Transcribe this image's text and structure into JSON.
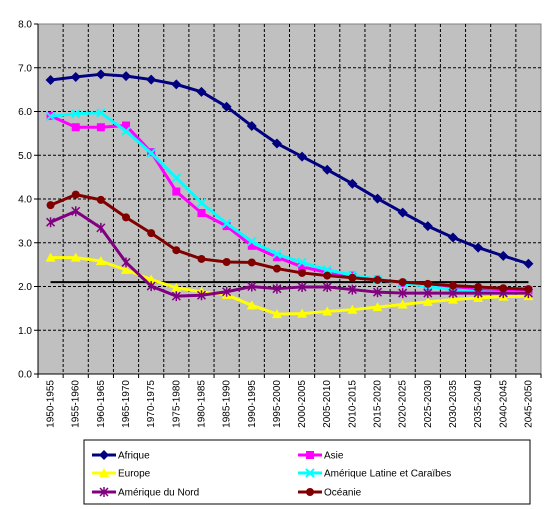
{
  "chart_data": {
    "type": "line",
    "title": "",
    "xlabel": "",
    "ylabel": "",
    "ylim": [
      0,
      8
    ],
    "y_ticks": [
      "0.0",
      "1.0",
      "2.0",
      "3.0",
      "4.0",
      "5.0",
      "6.0",
      "7.0",
      "8.0"
    ],
    "categories": [
      "1950-1955",
      "1955-1960",
      "1960-1965",
      "1965-1970",
      "1970-1975",
      "1975-1980",
      "1980-1985",
      "1985-1990",
      "1990-1995",
      "1995-2000",
      "2000-2005",
      "2005-2010",
      "2010-2015",
      "2015-2020",
      "2020-2025",
      "2025-2030",
      "2030-2035",
      "2035-2040",
      "2040-2045",
      "2045-2050"
    ],
    "grid": true,
    "legend_position": "bottom",
    "background": "#c0c0c0",
    "reference_line": {
      "value": 2.1,
      "color": "#000000"
    },
    "series": [
      {
        "name": "Afrique",
        "color": "#000080",
        "marker": "diamond",
        "values": [
          6.72,
          6.79,
          6.85,
          6.81,
          6.73,
          6.62,
          6.45,
          6.11,
          5.67,
          5.27,
          4.97,
          4.67,
          4.35,
          4.01,
          3.69,
          3.38,
          3.12,
          2.89,
          2.7,
          2.52
        ]
      },
      {
        "name": "Asie",
        "color": "#ff00ff",
        "marker": "square",
        "values": [
          5.9,
          5.64,
          5.64,
          5.68,
          5.07,
          4.17,
          3.68,
          3.38,
          2.93,
          2.67,
          2.45,
          2.32,
          2.25,
          2.16,
          2.08,
          2.01,
          1.96,
          1.93,
          1.91,
          1.91
        ]
      },
      {
        "name": "Europe",
        "color": "#ffff00",
        "marker": "triangle",
        "values": [
          2.66,
          2.66,
          2.58,
          2.38,
          2.16,
          1.97,
          1.88,
          1.81,
          1.57,
          1.37,
          1.38,
          1.43,
          1.47,
          1.53,
          1.59,
          1.65,
          1.7,
          1.74,
          1.77,
          1.78
        ]
      },
      {
        "name": "Amérique Latine et Caraïbes",
        "color": "#00ffff",
        "marker": "x",
        "values": [
          5.89,
          5.95,
          5.97,
          5.55,
          5.05,
          4.48,
          3.91,
          3.44,
          3.03,
          2.74,
          2.55,
          2.38,
          2.26,
          2.16,
          2.08,
          2.0,
          1.93,
          1.88,
          1.86,
          1.86
        ]
      },
      {
        "name": "Amérique du Nord",
        "color": "#800080",
        "marker": "star",
        "values": [
          3.47,
          3.72,
          3.34,
          2.55,
          2.01,
          1.78,
          1.8,
          1.88,
          2.0,
          1.95,
          1.99,
          1.99,
          1.93,
          1.87,
          1.85,
          1.85,
          1.85,
          1.85,
          1.85,
          1.85
        ]
      },
      {
        "name": "Océanie",
        "color": "#800000",
        "marker": "circle",
        "values": [
          3.86,
          4.1,
          3.98,
          3.58,
          3.22,
          2.83,
          2.63,
          2.56,
          2.55,
          2.41,
          2.31,
          2.25,
          2.2,
          2.15,
          2.1,
          2.06,
          2.02,
          1.99,
          1.96,
          1.94
        ]
      }
    ]
  }
}
